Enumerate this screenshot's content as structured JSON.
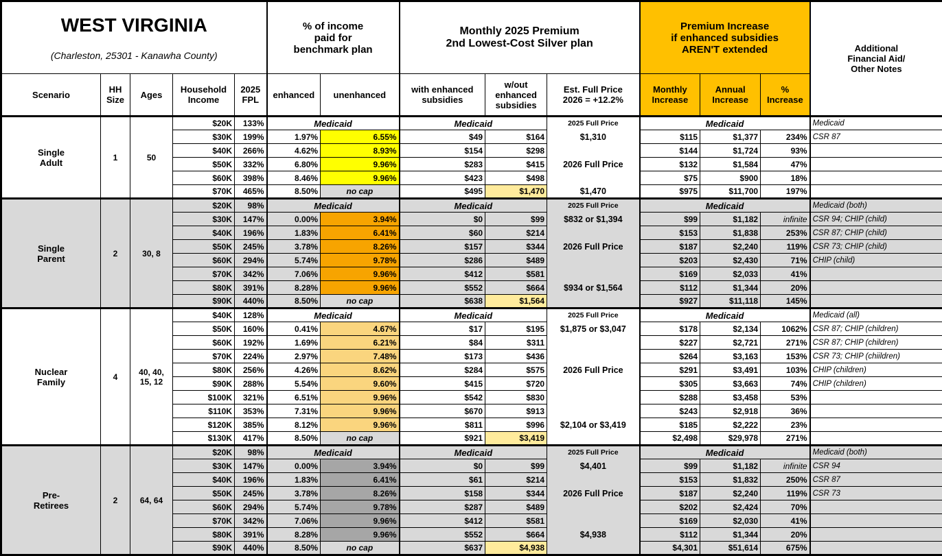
{
  "title": "WEST VIRGINIA",
  "subtitle": "(Charleston, 25301 - Kanawha County)",
  "column_groups": {
    "pct_income": "% of income\npaid for\nbenchmark plan",
    "premium": "Monthly 2025 Premium\n2nd Lowest-Cost Silver plan",
    "increase": "Premium Increase\nif enhanced subsidies\nAREN'T extended",
    "notes": "Additional\nFinancial Aid/\nOther Notes"
  },
  "columns": {
    "scenario": "Scenario",
    "hh_size": "HH\nSize",
    "ages": "Ages",
    "income": "Household\nIncome",
    "fpl": "2025\nFPL",
    "enhanced": "enhanced",
    "unenhanced": "unenhanced",
    "with_subsidies": "with enhanced\nsubsidies",
    "without_subsidies": "w/out\nenhanced\nsubsidies",
    "full_price": "Est. Full Price\n2026 = +12.2%",
    "monthly_increase": "Monthly\nIncrease",
    "annual_increase": "Annual\nIncrease",
    "pct_increase": "%\nIncrease"
  },
  "labels": {
    "medicaid": "Medicaid",
    "no_cap": "no cap",
    "price_2025": "2025 Full Price",
    "price_2026": "2026 Full Price"
  },
  "colors": {
    "header_orange": "#FFC000",
    "yellow": "#FFFF00",
    "orange": "#F7A400",
    "tan": "#FAD57E",
    "dark_gray": "#A6A6A6",
    "row_gray": "#D9D9D9",
    "highlight": "#FFEB9C"
  },
  "groups": [
    {
      "scenario": "Single\nAdult",
      "hh_size": "1",
      "ages": "50",
      "shade": false,
      "color": "yellow",
      "rows": [
        {
          "inc": "$20K",
          "fpl": "133%",
          "medicaid": true,
          "fp": "2025 Full Price",
          "notes": "Medicaid"
        },
        {
          "inc": "$30K",
          "fpl": "199%",
          "enh": "1.97%",
          "unenh": "6.55%",
          "with": "$49",
          "wout": "$164",
          "fp": "$1,310",
          "mo": "$115",
          "yr": "$1,377",
          "pct": "234%",
          "notes": "CSR 87"
        },
        {
          "inc": "$40K",
          "fpl": "266%",
          "enh": "4.62%",
          "unenh": "8.93%",
          "with": "$154",
          "wout": "$298",
          "fp": "",
          "mo": "$144",
          "yr": "$1,724",
          "pct": "93%",
          "notes": ""
        },
        {
          "inc": "$50K",
          "fpl": "332%",
          "enh": "6.80%",
          "unenh": "9.96%",
          "with": "$283",
          "wout": "$415",
          "fp": "2026 Full Price",
          "mo": "$132",
          "yr": "$1,584",
          "pct": "47%",
          "notes": ""
        },
        {
          "inc": "$60K",
          "fpl": "398%",
          "enh": "8.46%",
          "unenh": "9.96%",
          "with": "$423",
          "wout": "$498",
          "fp": "",
          "mo": "$75",
          "yr": "$900",
          "pct": "18%",
          "notes": ""
        },
        {
          "inc": "$70K",
          "fpl": "465%",
          "enh": "8.50%",
          "unenh": "no cap",
          "nocap": true,
          "with": "$495",
          "wout": "$1,470",
          "fp": "$1,470",
          "mo": "$975",
          "yr": "$11,700",
          "pct": "197%",
          "notes": ""
        }
      ]
    },
    {
      "scenario": "Single\nParent",
      "hh_size": "2",
      "ages": "30, 8",
      "shade": true,
      "color": "orange",
      "rows": [
        {
          "inc": "$20K",
          "fpl": "98%",
          "medicaid": true,
          "fp": "2025 Full Price",
          "notes": "Medicaid (both)"
        },
        {
          "inc": "$30K",
          "fpl": "147%",
          "enh": "0.00%",
          "unenh": "3.94%",
          "with": "$0",
          "wout": "$99",
          "fp": "$832 or $1,394",
          "mo": "$99",
          "yr": "$1,182",
          "pct": "infinite",
          "notes": "CSR 94; CHIP (child)"
        },
        {
          "inc": "$40K",
          "fpl": "196%",
          "enh": "1.83%",
          "unenh": "6.41%",
          "with": "$60",
          "wout": "$214",
          "fp": "",
          "mo": "$153",
          "yr": "$1,838",
          "pct": "253%",
          "notes": "CSR 87; CHIP (child)"
        },
        {
          "inc": "$50K",
          "fpl": "245%",
          "enh": "3.78%",
          "unenh": "8.26%",
          "with": "$157",
          "wout": "$344",
          "fp": "2026 Full Price",
          "mo": "$187",
          "yr": "$2,240",
          "pct": "119%",
          "notes": "CSR 73; CHIP (child)"
        },
        {
          "inc": "$60K",
          "fpl": "294%",
          "enh": "5.74%",
          "unenh": "9.78%",
          "with": "$286",
          "wout": "$489",
          "fp": "",
          "mo": "$203",
          "yr": "$2,430",
          "pct": "71%",
          "notes": "CHIP (child)"
        },
        {
          "inc": "$70K",
          "fpl": "342%",
          "enh": "7.06%",
          "unenh": "9.96%",
          "with": "$412",
          "wout": "$581",
          "fp": "",
          "mo": "$169",
          "yr": "$2,033",
          "pct": "41%",
          "notes": ""
        },
        {
          "inc": "$80K",
          "fpl": "391%",
          "enh": "8.28%",
          "unenh": "9.96%",
          "with": "$552",
          "wout": "$664",
          "fp": "$934 or $1,564",
          "mo": "$112",
          "yr": "$1,344",
          "pct": "20%",
          "notes": ""
        },
        {
          "inc": "$90K",
          "fpl": "440%",
          "enh": "8.50%",
          "unenh": "no cap",
          "nocap": true,
          "with": "$638",
          "wout": "$1,564",
          "fp": "",
          "mo": "$927",
          "yr": "$11,118",
          "pct": "145%",
          "notes": ""
        }
      ]
    },
    {
      "scenario": "Nuclear\nFamily",
      "hh_size": "4",
      "ages": "40, 40,\n15, 12",
      "shade": false,
      "color": "tan",
      "rows": [
        {
          "inc": "$40K",
          "fpl": "128%",
          "medicaid": true,
          "fp": "2025 Full Price",
          "notes": "Medicaid (all)"
        },
        {
          "inc": "$50K",
          "fpl": "160%",
          "enh": "0.41%",
          "unenh": "4.67%",
          "with": "$17",
          "wout": "$195",
          "fp": "$1,875 or $3,047",
          "mo": "$178",
          "yr": "$2,134",
          "pct": "1062%",
          "notes": "CSR 87; CHIP (children)"
        },
        {
          "inc": "$60K",
          "fpl": "192%",
          "enh": "1.69%",
          "unenh": "6.21%",
          "with": "$84",
          "wout": "$311",
          "fp": "",
          "mo": "$227",
          "yr": "$2,721",
          "pct": "271%",
          "notes": "CSR 87; CHIP (children)"
        },
        {
          "inc": "$70K",
          "fpl": "224%",
          "enh": "2.97%",
          "unenh": "7.48%",
          "with": "$173",
          "wout": "$436",
          "fp": "",
          "mo": "$264",
          "yr": "$3,163",
          "pct": "153%",
          "notes": "CSR 73; CHIP (chiildren)"
        },
        {
          "inc": "$80K",
          "fpl": "256%",
          "enh": "4.26%",
          "unenh": "8.62%",
          "with": "$284",
          "wout": "$575",
          "fp": "2026 Full Price",
          "mo": "$291",
          "yr": "$3,491",
          "pct": "103%",
          "notes": "CHIP (children)"
        },
        {
          "inc": "$90K",
          "fpl": "288%",
          "enh": "5.54%",
          "unenh": "9.60%",
          "with": "$415",
          "wout": "$720",
          "fp": "",
          "mo": "$305",
          "yr": "$3,663",
          "pct": "74%",
          "notes": "CHIP (children)"
        },
        {
          "inc": "$100K",
          "fpl": "321%",
          "enh": "6.51%",
          "unenh": "9.96%",
          "with": "$542",
          "wout": "$830",
          "fp": "",
          "mo": "$288",
          "yr": "$3,458",
          "pct": "53%",
          "notes": ""
        },
        {
          "inc": "$110K",
          "fpl": "353%",
          "enh": "7.31%",
          "unenh": "9.96%",
          "with": "$670",
          "wout": "$913",
          "fp": "",
          "mo": "$243",
          "yr": "$2,918",
          "pct": "36%",
          "notes": ""
        },
        {
          "inc": "$120K",
          "fpl": "385%",
          "enh": "8.12%",
          "unenh": "9.96%",
          "with": "$811",
          "wout": "$996",
          "fp": "$2,104 or $3,419",
          "mo": "$185",
          "yr": "$2,222",
          "pct": "23%",
          "notes": ""
        },
        {
          "inc": "$130K",
          "fpl": "417%",
          "enh": "8.50%",
          "unenh": "no cap",
          "nocap": true,
          "with": "$921",
          "wout": "$3,419",
          "fp": "",
          "mo": "$2,498",
          "yr": "$29,978",
          "pct": "271%",
          "notes": ""
        }
      ]
    },
    {
      "scenario": "Pre-\nRetirees",
      "hh_size": "2",
      "ages": "64, 64",
      "shade": true,
      "color": "gray",
      "rows": [
        {
          "inc": "$20K",
          "fpl": "98%",
          "medicaid": true,
          "fp": "2025 Full Price",
          "notes": "Medicaid (both)"
        },
        {
          "inc": "$30K",
          "fpl": "147%",
          "enh": "0.00%",
          "unenh": "3.94%",
          "with": "$0",
          "wout": "$99",
          "fp": "$4,401",
          "mo": "$99",
          "yr": "$1,182",
          "pct": "infinite",
          "notes": "CSR 94"
        },
        {
          "inc": "$40K",
          "fpl": "196%",
          "enh": "1.83%",
          "unenh": "6.41%",
          "with": "$61",
          "wout": "$214",
          "fp": "",
          "mo": "$153",
          "yr": "$1,832",
          "pct": "250%",
          "notes": "CSR 87"
        },
        {
          "inc": "$50K",
          "fpl": "245%",
          "enh": "3.78%",
          "unenh": "8.26%",
          "with": "$158",
          "wout": "$344",
          "fp": "2026 Full Price",
          "mo": "$187",
          "yr": "$2,240",
          "pct": "119%",
          "notes": "CSR 73"
        },
        {
          "inc": "$60K",
          "fpl": "294%",
          "enh": "5.74%",
          "unenh": "9.78%",
          "with": "$287",
          "wout": "$489",
          "fp": "",
          "mo": "$202",
          "yr": "$2,424",
          "pct": "70%",
          "notes": ""
        },
        {
          "inc": "$70K",
          "fpl": "342%",
          "enh": "7.06%",
          "unenh": "9.96%",
          "with": "$412",
          "wout": "$581",
          "fp": "",
          "mo": "$169",
          "yr": "$2,030",
          "pct": "41%",
          "notes": ""
        },
        {
          "inc": "$80K",
          "fpl": "391%",
          "enh": "8.28%",
          "unenh": "9.96%",
          "with": "$552",
          "wout": "$664",
          "fp": "$4,938",
          "mo": "$112",
          "yr": "$1,344",
          "pct": "20%",
          "notes": ""
        },
        {
          "inc": "$90K",
          "fpl": "440%",
          "enh": "8.50%",
          "unenh": "no cap",
          "nocap": true,
          "with": "$637",
          "wout": "$4,938",
          "fp": "",
          "mo": "$4,301",
          "yr": "$51,614",
          "pct": "675%",
          "notes": ""
        }
      ]
    }
  ]
}
